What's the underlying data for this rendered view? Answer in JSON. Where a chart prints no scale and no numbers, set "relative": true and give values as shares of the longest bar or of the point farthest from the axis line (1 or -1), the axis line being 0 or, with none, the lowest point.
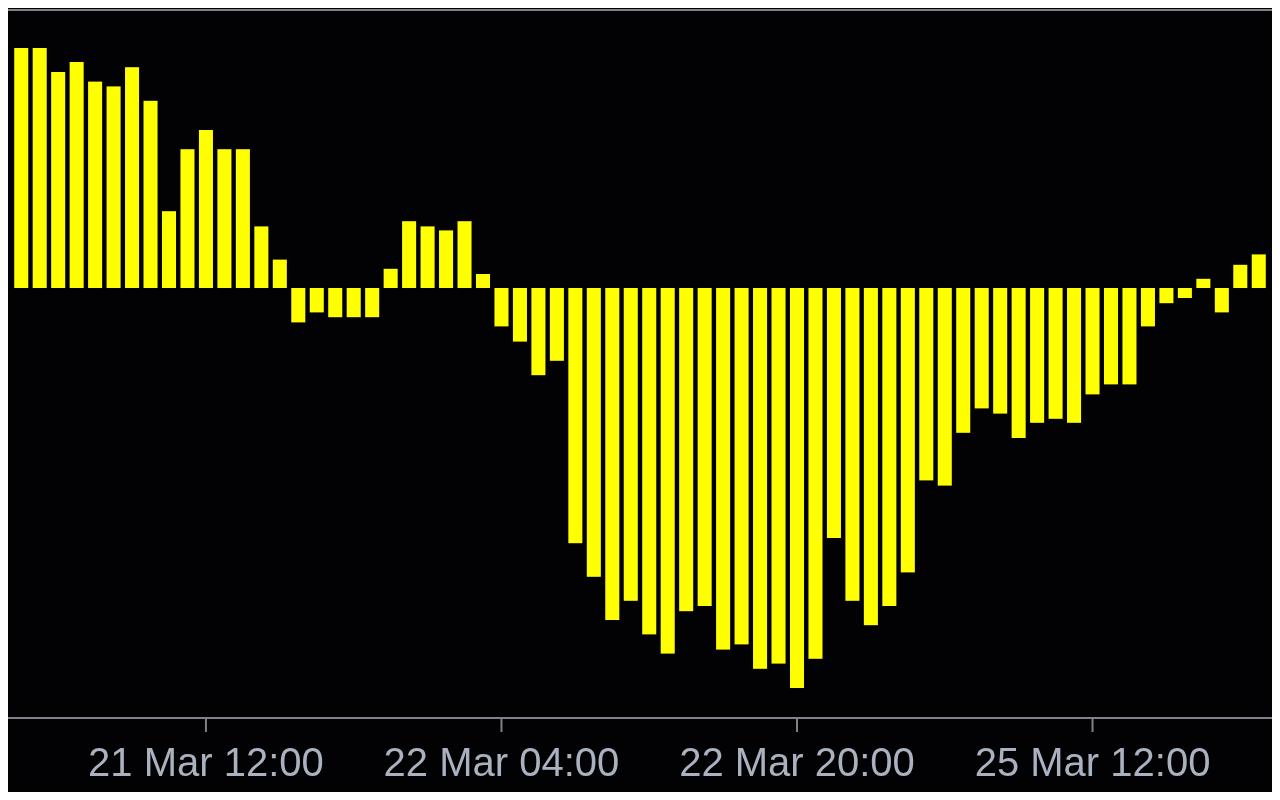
{
  "chart_data": {
    "type": "bar",
    "relative": true,
    "color": "#ffff00",
    "categories": [
      null,
      null,
      null,
      null,
      null,
      null,
      null,
      null,
      null,
      null,
      "21 Mar 12:00",
      null,
      null,
      null,
      null,
      null,
      null,
      null,
      null,
      null,
      null,
      null,
      null,
      null,
      null,
      null,
      "22 Mar 04:00",
      null,
      null,
      null,
      null,
      null,
      null,
      null,
      null,
      null,
      null,
      null,
      null,
      null,
      null,
      null,
      "22 Mar 20:00",
      null,
      null,
      null,
      null,
      null,
      null,
      null,
      null,
      null,
      null,
      null,
      null,
      null,
      null,
      null,
      "25 Mar 12:00",
      null,
      null,
      null,
      null,
      null,
      null,
      null,
      null,
      null
    ],
    "values": [
      0.6,
      0.6,
      0.54,
      0.565,
      0.516,
      0.504,
      0.552,
      0.468,
      0.192,
      0.347,
      0.395,
      0.347,
      0.347,
      0.154,
      0.071,
      -0.086,
      -0.061,
      -0.073,
      -0.073,
      -0.073,
      0.048,
      0.167,
      0.154,
      0.144,
      0.167,
      0.035,
      -0.096,
      -0.134,
      -0.218,
      -0.182,
      -0.638,
      -0.722,
      -0.83,
      -0.782,
      -0.866,
      -0.914,
      -0.808,
      -0.795,
      -0.904,
      -0.891,
      -0.952,
      -0.939,
      -1,
      -0.927,
      -0.625,
      -0.782,
      -0.843,
      -0.795,
      -0.711,
      -0.481,
      -0.494,
      -0.362,
      -0.301,
      -0.314,
      -0.375,
      -0.337,
      -0.327,
      -0.337,
      -0.266,
      -0.241,
      -0.241,
      -0.096,
      -0.038,
      -0.025,
      0.023,
      -0.061,
      0.058,
      0.084
    ],
    "grid": false
  }
}
